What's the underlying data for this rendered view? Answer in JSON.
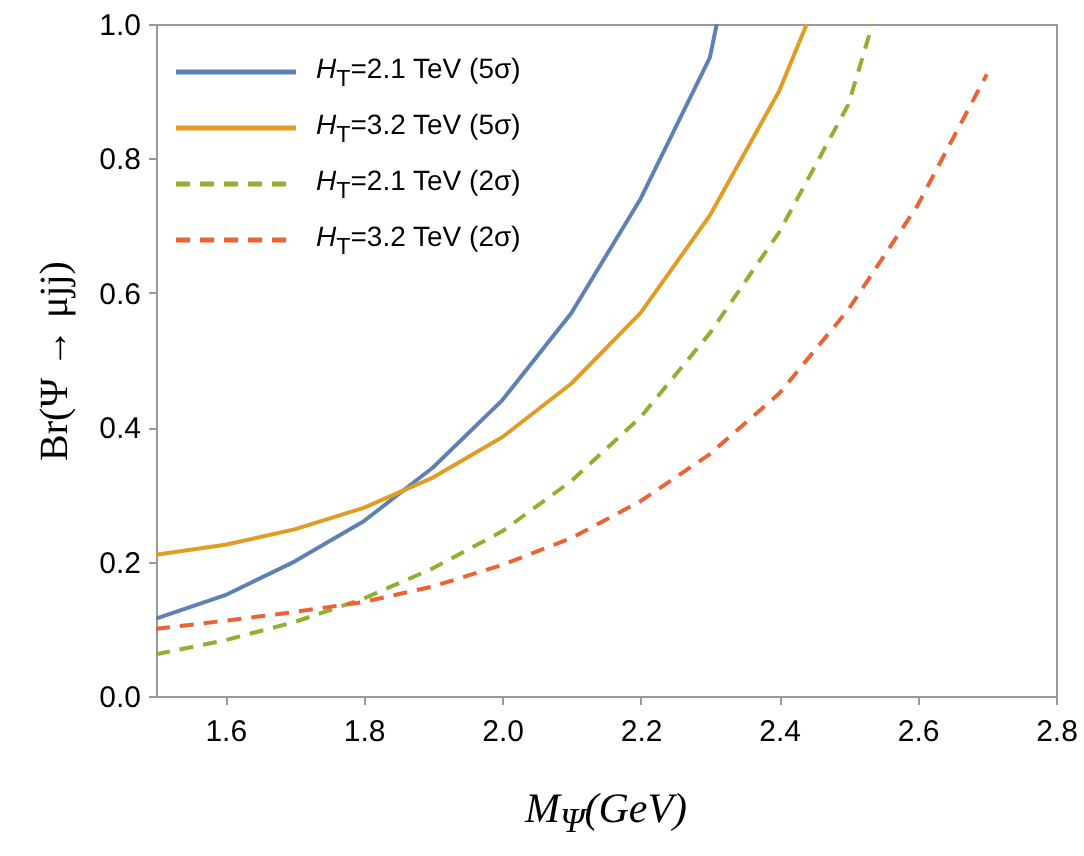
{
  "chart_data": {
    "type": "line",
    "xlabel": "M$_{Ψ}$(GeV)",
    "ylabel": "Br(Ψ → μjj)",
    "xlim": [
      1.5,
      2.8
    ],
    "ylim": [
      0,
      1
    ],
    "xticks": [
      1.6,
      1.8,
      {
        "value": 2,
        "label": "2.0"
      },
      2.2,
      2.4,
      2.6,
      2.8
    ],
    "yticks": [
      {
        "value": 0,
        "label": "0.0"
      },
      0.2,
      0.4,
      0.6,
      0.8,
      {
        "value": 1,
        "label": "1.0"
      }
    ],
    "grid": false,
    "legend": "top left",
    "marker": "none",
    "series": [
      {
        "name": "H$_{T}$=2.1 TeV (5σ)",
        "color": "#5e81b5",
        "line_style": "solid",
        "x": [
          1.5,
          1.6,
          1.7,
          1.8,
          1.9,
          2.0,
          2.1,
          2.2,
          2.3,
          2.31
        ],
        "values": [
          0.115,
          0.15,
          0.2,
          0.26,
          0.34,
          0.44,
          0.57,
          0.74,
          0.95,
          1.0
        ]
      },
      {
        "name": "H$_{T}$=3.2 TeV (5σ)",
        "color": "#e19c24",
        "line_style": "solid",
        "x": [
          1.5,
          1.6,
          1.7,
          1.8,
          1.9,
          2.0,
          2.1,
          2.2,
          2.3,
          2.4,
          2.44
        ],
        "values": [
          0.21,
          0.225,
          0.248,
          0.28,
          0.325,
          0.385,
          0.465,
          0.57,
          0.715,
          0.9,
          1.0
        ]
      },
      {
        "name": "H$_{T}$=2.1 TeV (2σ)",
        "color": "#8fb032",
        "line_style": "dashed",
        "x": [
          1.5,
          1.6,
          1.7,
          1.8,
          1.9,
          2.0,
          2.1,
          2.2,
          2.3,
          2.4,
          2.5,
          2.535
        ],
        "values": [
          0.062,
          0.083,
          0.11,
          0.145,
          0.19,
          0.245,
          0.32,
          0.415,
          0.54,
          0.69,
          0.88,
          1.0
        ]
      },
      {
        "name": "H$_{T}$=3.2 TeV (2σ)",
        "color": "#eb6235",
        "line_style": "dashed",
        "x": [
          1.5,
          1.6,
          1.7,
          1.8,
          1.9,
          2.0,
          2.1,
          2.2,
          2.3,
          2.4,
          2.5,
          2.6,
          2.7
        ],
        "values": [
          0.1,
          0.112,
          0.125,
          0.14,
          0.163,
          0.195,
          0.235,
          0.29,
          0.36,
          0.45,
          0.575,
          0.73,
          0.925
        ]
      }
    ]
  }
}
